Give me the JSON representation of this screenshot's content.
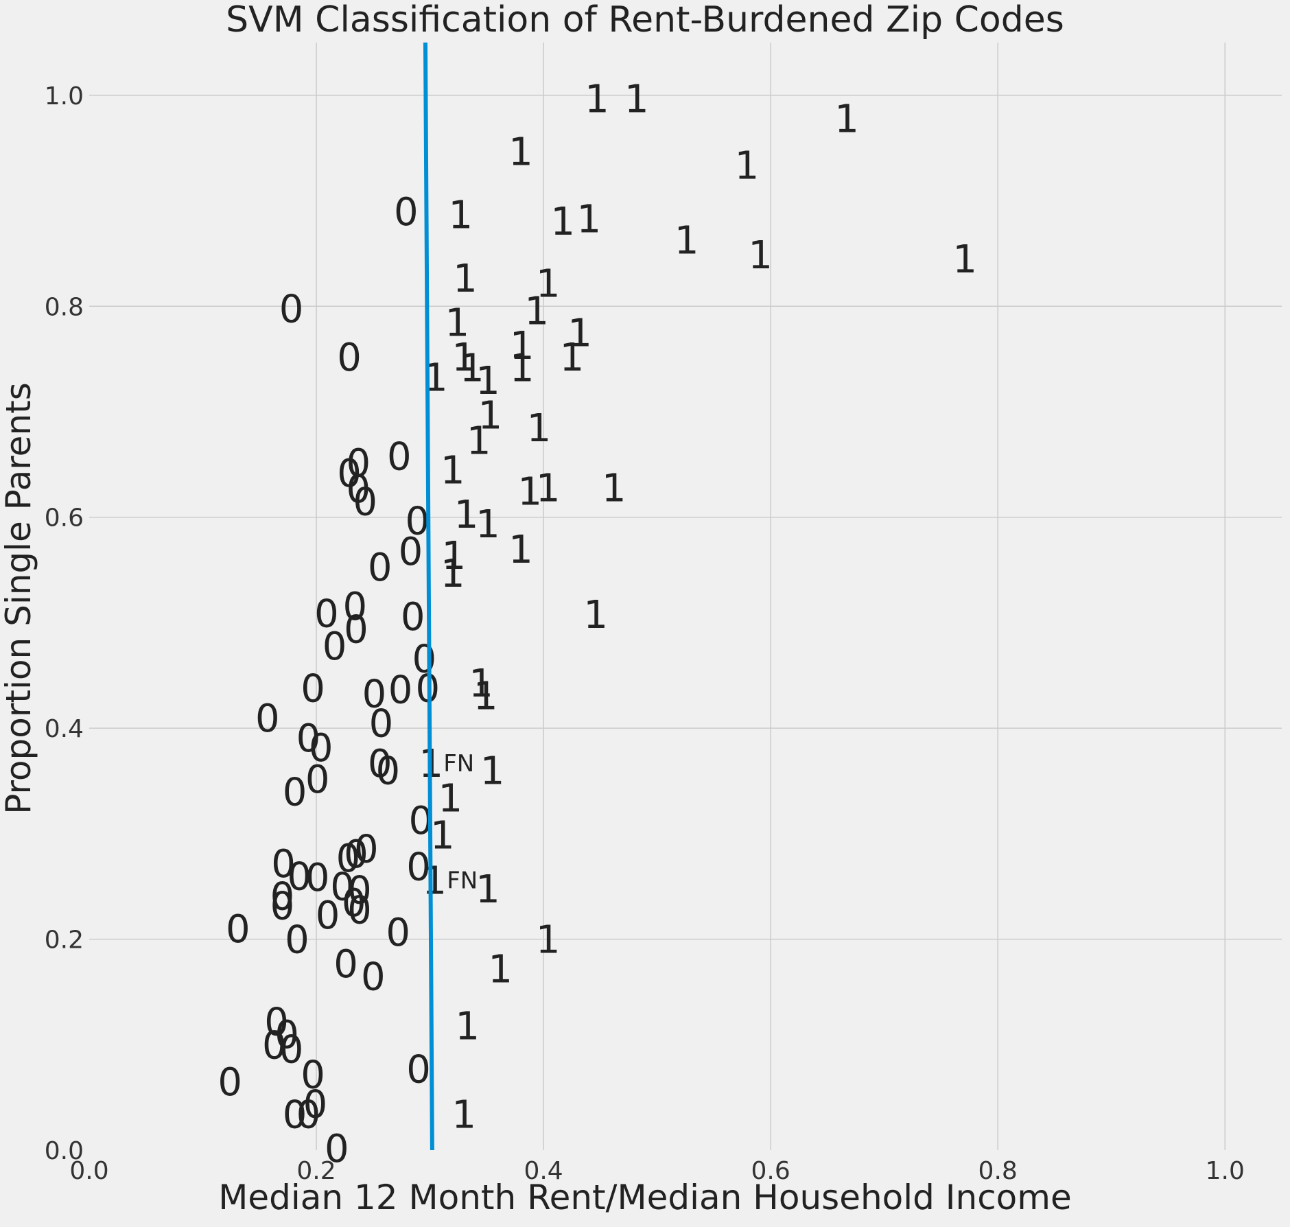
{
  "chart_data": {
    "type": "scatter",
    "title": "SVM Classification of Rent-Burdened Zip Codes",
    "xlabel": "Median 12 Month Rent/Median Household Income",
    "ylabel": "Proportion Single Parents",
    "xlim": [
      0,
      1.05
    ],
    "ylim": [
      0,
      1.05
    ],
    "xticks": [
      0,
      0.2,
      0.4,
      0.6,
      0.8,
      1.0
    ],
    "yticks": [
      0,
      0.2,
      0.4,
      0.6,
      0.8,
      1.0
    ],
    "xtick_labels": [
      "0.0",
      "0.2",
      "0.4",
      "0.6",
      "0.8",
      "1.0"
    ],
    "ytick_labels": [
      "0.0",
      "0.2",
      "0.4",
      "0.6",
      "0.8",
      "1.0"
    ],
    "grid": true,
    "boundary_color": "#008fd5",
    "decision_boundary": [
      [
        0.296,
        1.05
      ],
      [
        0.302,
        0.0
      ]
    ],
    "points": [
      {
        "x": 0.447,
        "y": 0.997,
        "label": "1"
      },
      {
        "x": 0.482,
        "y": 0.997,
        "label": "1"
      },
      {
        "x": 0.667,
        "y": 0.978,
        "label": "1"
      },
      {
        "x": 0.38,
        "y": 0.947,
        "label": "1"
      },
      {
        "x": 0.579,
        "y": 0.934,
        "label": "1"
      },
      {
        "x": 0.279,
        "y": 0.89,
        "label": "0"
      },
      {
        "x": 0.327,
        "y": 0.887,
        "label": "1"
      },
      {
        "x": 0.417,
        "y": 0.881,
        "label": "1"
      },
      {
        "x": 0.44,
        "y": 0.883,
        "label": "1"
      },
      {
        "x": 0.526,
        "y": 0.863,
        "label": "1"
      },
      {
        "x": 0.591,
        "y": 0.849,
        "label": "1"
      },
      {
        "x": 0.771,
        "y": 0.845,
        "label": "1"
      },
      {
        "x": 0.331,
        "y": 0.827,
        "label": "1"
      },
      {
        "x": 0.404,
        "y": 0.822,
        "label": "1"
      },
      {
        "x": 0.178,
        "y": 0.798,
        "label": "0"
      },
      {
        "x": 0.394,
        "y": 0.796,
        "label": "1"
      },
      {
        "x": 0.324,
        "y": 0.785,
        "label": "1"
      },
      {
        "x": 0.432,
        "y": 0.775,
        "label": "1"
      },
      {
        "x": 0.229,
        "y": 0.752,
        "label": "0"
      },
      {
        "x": 0.381,
        "y": 0.763,
        "label": "1"
      },
      {
        "x": 0.33,
        "y": 0.752,
        "label": "1"
      },
      {
        "x": 0.337,
        "y": 0.742,
        "label": "1"
      },
      {
        "x": 0.381,
        "y": 0.742,
        "label": "1"
      },
      {
        "x": 0.425,
        "y": 0.752,
        "label": "1"
      },
      {
        "x": 0.305,
        "y": 0.733,
        "label": "1"
      },
      {
        "x": 0.351,
        "y": 0.73,
        "label": "1"
      },
      {
        "x": 0.353,
        "y": 0.697,
        "label": "1"
      },
      {
        "x": 0.396,
        "y": 0.685,
        "label": "1"
      },
      {
        "x": 0.343,
        "y": 0.673,
        "label": "1"
      },
      {
        "x": 0.273,
        "y": 0.658,
        "label": "0"
      },
      {
        "x": 0.237,
        "y": 0.652,
        "label": "0"
      },
      {
        "x": 0.229,
        "y": 0.642,
        "label": "0"
      },
      {
        "x": 0.32,
        "y": 0.645,
        "label": "1"
      },
      {
        "x": 0.237,
        "y": 0.627,
        "label": "0"
      },
      {
        "x": 0.243,
        "y": 0.615,
        "label": "0"
      },
      {
        "x": 0.388,
        "y": 0.625,
        "label": "1"
      },
      {
        "x": 0.404,
        "y": 0.628,
        "label": "1"
      },
      {
        "x": 0.462,
        "y": 0.628,
        "label": "1"
      },
      {
        "x": 0.289,
        "y": 0.597,
        "label": "0"
      },
      {
        "x": 0.332,
        "y": 0.603,
        "label": "1"
      },
      {
        "x": 0.351,
        "y": 0.594,
        "label": "1"
      },
      {
        "x": 0.283,
        "y": 0.568,
        "label": "0"
      },
      {
        "x": 0.321,
        "y": 0.564,
        "label": "1"
      },
      {
        "x": 0.38,
        "y": 0.57,
        "label": "1"
      },
      {
        "x": 0.256,
        "y": 0.553,
        "label": "0"
      },
      {
        "x": 0.32,
        "y": 0.547,
        "label": "1"
      },
      {
        "x": 0.209,
        "y": 0.509,
        "label": "0"
      },
      {
        "x": 0.234,
        "y": 0.516,
        "label": "0"
      },
      {
        "x": 0.285,
        "y": 0.506,
        "label": "0"
      },
      {
        "x": 0.446,
        "y": 0.508,
        "label": "1"
      },
      {
        "x": 0.235,
        "y": 0.494,
        "label": "0"
      },
      {
        "x": 0.216,
        "y": 0.478,
        "label": "0"
      },
      {
        "x": 0.295,
        "y": 0.466,
        "label": "0"
      },
      {
        "x": 0.197,
        "y": 0.438,
        "label": "0"
      },
      {
        "x": 0.251,
        "y": 0.433,
        "label": "0"
      },
      {
        "x": 0.274,
        "y": 0.437,
        "label": "0"
      },
      {
        "x": 0.298,
        "y": 0.438,
        "label": "0"
      },
      {
        "x": 0.345,
        "y": 0.443,
        "label": "1"
      },
      {
        "x": 0.349,
        "y": 0.431,
        "label": "1"
      },
      {
        "x": 0.157,
        "y": 0.41,
        "label": "0"
      },
      {
        "x": 0.257,
        "y": 0.405,
        "label": "0"
      },
      {
        "x": 0.193,
        "y": 0.391,
        "label": "0"
      },
      {
        "x": 0.204,
        "y": 0.382,
        "label": "0"
      },
      {
        "x": 0.301,
        "y": 0.367,
        "label": "1",
        "annotation": "FN"
      },
      {
        "x": 0.256,
        "y": 0.367,
        "label": "0"
      },
      {
        "x": 0.263,
        "y": 0.36,
        "label": "0"
      },
      {
        "x": 0.355,
        "y": 0.36,
        "label": "1"
      },
      {
        "x": 0.201,
        "y": 0.352,
        "label": "0"
      },
      {
        "x": 0.181,
        "y": 0.34,
        "label": "0"
      },
      {
        "x": 0.318,
        "y": 0.334,
        "label": "1"
      },
      {
        "x": 0.292,
        "y": 0.313,
        "label": "0"
      },
      {
        "x": 0.311,
        "y": 0.299,
        "label": "1"
      },
      {
        "x": 0.244,
        "y": 0.286,
        "label": "0"
      },
      {
        "x": 0.235,
        "y": 0.281,
        "label": "0"
      },
      {
        "x": 0.228,
        "y": 0.277,
        "label": "0"
      },
      {
        "x": 0.171,
        "y": 0.272,
        "label": "0"
      },
      {
        "x": 0.29,
        "y": 0.269,
        "label": "0"
      },
      {
        "x": 0.185,
        "y": 0.26,
        "label": "0"
      },
      {
        "x": 0.201,
        "y": 0.259,
        "label": "0"
      },
      {
        "x": 0.304,
        "y": 0.256,
        "label": "1",
        "annotation": "FN"
      },
      {
        "x": 0.223,
        "y": 0.25,
        "label": "0"
      },
      {
        "x": 0.238,
        "y": 0.247,
        "label": "0"
      },
      {
        "x": 0.351,
        "y": 0.248,
        "label": "1"
      },
      {
        "x": 0.17,
        "y": 0.241,
        "label": "0"
      },
      {
        "x": 0.233,
        "y": 0.235,
        "label": "0"
      },
      {
        "x": 0.17,
        "y": 0.232,
        "label": "0"
      },
      {
        "x": 0.238,
        "y": 0.228,
        "label": "0"
      },
      {
        "x": 0.21,
        "y": 0.223,
        "label": "0"
      },
      {
        "x": 0.131,
        "y": 0.21,
        "label": "0"
      },
      {
        "x": 0.272,
        "y": 0.207,
        "label": "0"
      },
      {
        "x": 0.404,
        "y": 0.2,
        "label": "1"
      },
      {
        "x": 0.183,
        "y": 0.2,
        "label": "0"
      },
      {
        "x": 0.226,
        "y": 0.177,
        "label": "0"
      },
      {
        "x": 0.362,
        "y": 0.172,
        "label": "1"
      },
      {
        "x": 0.25,
        "y": 0.165,
        "label": "0"
      },
      {
        "x": 0.165,
        "y": 0.122,
        "label": "0"
      },
      {
        "x": 0.333,
        "y": 0.118,
        "label": "1"
      },
      {
        "x": 0.174,
        "y": 0.11,
        "label": "0"
      },
      {
        "x": 0.163,
        "y": 0.1,
        "label": "0"
      },
      {
        "x": 0.178,
        "y": 0.096,
        "label": "0"
      },
      {
        "x": 0.29,
        "y": 0.077,
        "label": "0"
      },
      {
        "x": 0.197,
        "y": 0.072,
        "label": "0"
      },
      {
        "x": 0.124,
        "y": 0.065,
        "label": "0"
      },
      {
        "x": 0.199,
        "y": 0.044,
        "label": "0"
      },
      {
        "x": 0.193,
        "y": 0.034,
        "label": "0"
      },
      {
        "x": 0.181,
        "y": 0.034,
        "label": "0"
      },
      {
        "x": 0.33,
        "y": 0.034,
        "label": "1"
      },
      {
        "x": 0.218,
        "y": 0.002,
        "label": "0"
      }
    ]
  }
}
